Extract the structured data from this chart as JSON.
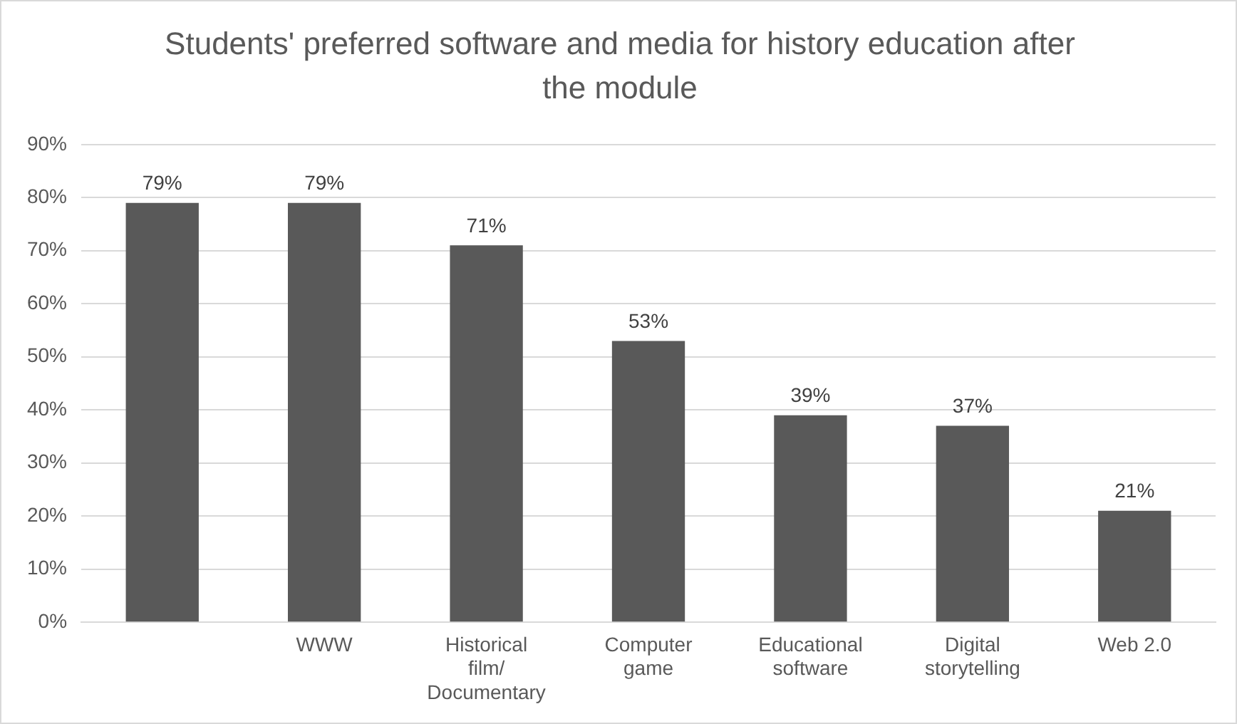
{
  "chart_data": {
    "type": "bar",
    "title": "Students' preferred software and media for history education after the module",
    "categories": [
      null,
      "WWW",
      "Historical film/ Documentary",
      "Computer game",
      "Educational software",
      "Digital storytelling",
      "Web 2.0"
    ],
    "values": [
      79,
      79,
      71,
      53,
      39,
      37,
      21
    ],
    "value_labels": [
      "79%",
      "79%",
      "71%",
      "53%",
      "39%",
      "37%",
      "21%"
    ],
    "color": "#595959",
    "ylim": [
      0,
      90
    ],
    "yticks": [
      {
        "value": 0,
        "label": "0%"
      },
      {
        "value": 10,
        "label": "10%"
      },
      {
        "value": 20,
        "label": "20%"
      },
      {
        "value": 30,
        "label": "30%"
      },
      {
        "value": 40,
        "label": "40%"
      },
      {
        "value": 50,
        "label": "50%"
      },
      {
        "value": 60,
        "label": "60%"
      },
      {
        "value": 70,
        "label": "70%"
      },
      {
        "value": 80,
        "label": "80%"
      },
      {
        "value": 90,
        "label": "90%"
      }
    ],
    "grid": "y",
    "legend": false
  }
}
